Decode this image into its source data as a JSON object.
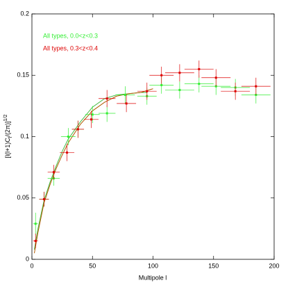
{
  "chart_data": {
    "type": "scatter",
    "x_label": "Multipole l",
    "y_label_parts": [
      "[l(l+1)C",
      "l",
      "/(2π)]",
      "1/2"
    ],
    "xlim": [
      0,
      200
    ],
    "ylim": [
      0,
      0.2
    ],
    "xticks": [
      0,
      50,
      100,
      150,
      200
    ],
    "yticks": [
      0,
      0.05,
      0.1,
      0.15,
      0.2
    ],
    "legend": "top-left",
    "series": [
      {
        "name": "All types, 0.0<z<0.3",
        "color": "#33ee33",
        "x": [
          3,
          10,
          18,
          30,
          38,
          50,
          62,
          77,
          95,
          107,
          122,
          138,
          152,
          168,
          185
        ],
        "values": [
          0.029,
          0.049,
          0.066,
          0.1,
          0.106,
          0.118,
          0.119,
          0.134,
          0.133,
          0.142,
          0.138,
          0.143,
          0.141,
          0.14,
          0.134
        ],
        "xerr": [
          2,
          4,
          5,
          6,
          5,
          6,
          7,
          8,
          8,
          10,
          12,
          12,
          12,
          12,
          12
        ],
        "yerr": [
          0.009,
          0.006,
          0.006,
          0.007,
          0.007,
          0.007,
          0.007,
          0.007,
          0.007,
          0.007,
          0.007,
          0.007,
          0.007,
          0.007,
          0.007
        ]
      },
      {
        "name": "All types, 0.3<z<0.4",
        "color": "#dd0000",
        "x": [
          3,
          10,
          18,
          29,
          38,
          49,
          62,
          78,
          95,
          107,
          122,
          138,
          152,
          168,
          185
        ],
        "values": [
          0.015,
          0.049,
          0.071,
          0.087,
          0.106,
          0.114,
          0.131,
          0.127,
          0.137,
          0.15,
          0.152,
          0.155,
          0.148,
          0.137,
          0.141
        ],
        "xerr": [
          2,
          4,
          5,
          6,
          5,
          6,
          7,
          8,
          8,
          10,
          12,
          12,
          12,
          12,
          12
        ],
        "yerr": [
          0.006,
          0.006,
          0.006,
          0.007,
          0.007,
          0.007,
          0.007,
          0.007,
          0.007,
          0.007,
          0.007,
          0.007,
          0.007,
          0.007,
          0.007
        ]
      }
    ],
    "curves": [
      {
        "color": "#44bb44",
        "x": [
          2,
          5,
          10,
          15,
          20,
          25,
          30,
          40,
          50,
          60,
          70,
          80,
          90,
          95
        ],
        "values": [
          0.008,
          0.025,
          0.048,
          0.063,
          0.076,
          0.088,
          0.098,
          0.112,
          0.124,
          0.131,
          0.134,
          0.135,
          0.136,
          0.136
        ]
      },
      {
        "color": "#b05a00",
        "x": [
          2,
          5,
          10,
          15,
          20,
          25,
          30,
          40,
          50,
          60,
          70,
          80,
          90,
          100
        ],
        "values": [
          0.005,
          0.022,
          0.046,
          0.061,
          0.074,
          0.085,
          0.095,
          0.11,
          0.121,
          0.128,
          0.133,
          0.135,
          0.136,
          0.139
        ]
      }
    ]
  }
}
